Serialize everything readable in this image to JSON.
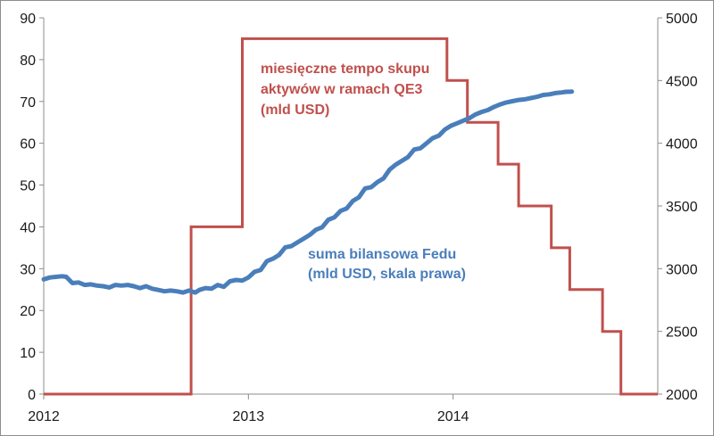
{
  "chart_data": {
    "type": "line",
    "left_axis": {
      "min": 0,
      "max": 90,
      "ticks": [
        "0",
        "10",
        "20",
        "30",
        "40",
        "50",
        "60",
        "70",
        "80",
        "90"
      ]
    },
    "right_axis": {
      "min": 2000,
      "max": 5000,
      "ticks": [
        "2000",
        "2500",
        "3000",
        "3500",
        "4000",
        "4500",
        "5000"
      ]
    },
    "x_axis": {
      "min": 2012.0,
      "max": 2015.0,
      "ticks": [
        "2012",
        "2013",
        "2014"
      ]
    },
    "grid": false,
    "series": [
      {
        "name": "miesięczne tempo skupu aktywów w ramach QE3 (mld USD)",
        "axis": "left",
        "color": "#c0504d",
        "step": true,
        "points": [
          [
            2012.0,
            0
          ],
          [
            2012.72,
            0
          ],
          [
            2012.72,
            40
          ],
          [
            2012.97,
            40
          ],
          [
            2012.97,
            85
          ],
          [
            2013.97,
            85
          ],
          [
            2013.97,
            75
          ],
          [
            2014.07,
            75
          ],
          [
            2014.07,
            65
          ],
          [
            2014.22,
            65
          ],
          [
            2014.22,
            55
          ],
          [
            2014.32,
            55
          ],
          [
            2014.32,
            45
          ],
          [
            2014.48,
            45
          ],
          [
            2014.48,
            35
          ],
          [
            2014.57,
            35
          ],
          [
            2014.57,
            25
          ],
          [
            2014.73,
            25
          ],
          [
            2014.73,
            15
          ],
          [
            2014.82,
            15
          ],
          [
            2014.82,
            0
          ],
          [
            2015.0,
            0
          ]
        ],
        "label_lines": [
          "miesięczne tempo skupu",
          "aktywów w ramach QE3",
          "(mld USD)"
        ]
      },
      {
        "name": "suma bilansowa Fedu (mld USD, skala prawa)",
        "axis": "right",
        "color": "#4a7ebb",
        "step": false,
        "points": [
          [
            2012.0,
            2915
          ],
          [
            2012.03,
            2930
          ],
          [
            2012.06,
            2935
          ],
          [
            2012.09,
            2940
          ],
          [
            2012.11,
            2935
          ],
          [
            2012.14,
            2885
          ],
          [
            2012.17,
            2890
          ],
          [
            2012.2,
            2870
          ],
          [
            2012.23,
            2875
          ],
          [
            2012.26,
            2865
          ],
          [
            2012.29,
            2860
          ],
          [
            2012.32,
            2850
          ],
          [
            2012.35,
            2870
          ],
          [
            2012.38,
            2865
          ],
          [
            2012.41,
            2870
          ],
          [
            2012.44,
            2860
          ],
          [
            2012.47,
            2845
          ],
          [
            2012.5,
            2860
          ],
          [
            2012.53,
            2840
          ],
          [
            2012.56,
            2830
          ],
          [
            2012.59,
            2820
          ],
          [
            2012.62,
            2825
          ],
          [
            2012.65,
            2820
          ],
          [
            2012.68,
            2810
          ],
          [
            2012.71,
            2825
          ],
          [
            2012.74,
            2810
          ],
          [
            2012.76,
            2830
          ],
          [
            2012.79,
            2845
          ],
          [
            2012.82,
            2840
          ],
          [
            2012.85,
            2870
          ],
          [
            2012.88,
            2855
          ],
          [
            2012.91,
            2900
          ],
          [
            2012.94,
            2910
          ],
          [
            2012.97,
            2905
          ],
          [
            2013.0,
            2930
          ],
          [
            2013.03,
            2975
          ],
          [
            2013.06,
            2990
          ],
          [
            2013.09,
            3060
          ],
          [
            2013.12,
            3080
          ],
          [
            2013.15,
            3110
          ],
          [
            2013.18,
            3170
          ],
          [
            2013.21,
            3180
          ],
          [
            2013.24,
            3210
          ],
          [
            2013.27,
            3240
          ],
          [
            2013.3,
            3270
          ],
          [
            2013.33,
            3310
          ],
          [
            2013.36,
            3330
          ],
          [
            2013.39,
            3390
          ],
          [
            2013.42,
            3410
          ],
          [
            2013.45,
            3460
          ],
          [
            2013.48,
            3480
          ],
          [
            2013.51,
            3540
          ],
          [
            2013.54,
            3570
          ],
          [
            2013.57,
            3640
          ],
          [
            2013.6,
            3650
          ],
          [
            2013.63,
            3690
          ],
          [
            2013.66,
            3720
          ],
          [
            2013.69,
            3790
          ],
          [
            2013.72,
            3830
          ],
          [
            2013.75,
            3860
          ],
          [
            2013.78,
            3890
          ],
          [
            2013.81,
            3950
          ],
          [
            2013.84,
            3960
          ],
          [
            2013.87,
            4000
          ],
          [
            2013.9,
            4040
          ],
          [
            2013.93,
            4060
          ],
          [
            2013.96,
            4110
          ],
          [
            2013.99,
            4140
          ],
          [
            2014.02,
            4160
          ],
          [
            2014.05,
            4180
          ],
          [
            2014.08,
            4200
          ],
          [
            2014.11,
            4230
          ],
          [
            2014.14,
            4250
          ],
          [
            2014.17,
            4265
          ],
          [
            2014.2,
            4290
          ],
          [
            2014.23,
            4310
          ],
          [
            2014.26,
            4325
          ],
          [
            2014.29,
            4335
          ],
          [
            2014.32,
            4345
          ],
          [
            2014.35,
            4350
          ],
          [
            2014.38,
            4360
          ],
          [
            2014.41,
            4370
          ],
          [
            2014.44,
            4385
          ],
          [
            2014.47,
            4390
          ],
          [
            2014.5,
            4400
          ],
          [
            2014.53,
            4405
          ],
          [
            2014.55,
            4410
          ],
          [
            2014.58,
            4412
          ]
        ],
        "label_lines": [
          "suma bilansowa Fedu",
          "(mld USD, skala prawa)"
        ]
      }
    ]
  }
}
